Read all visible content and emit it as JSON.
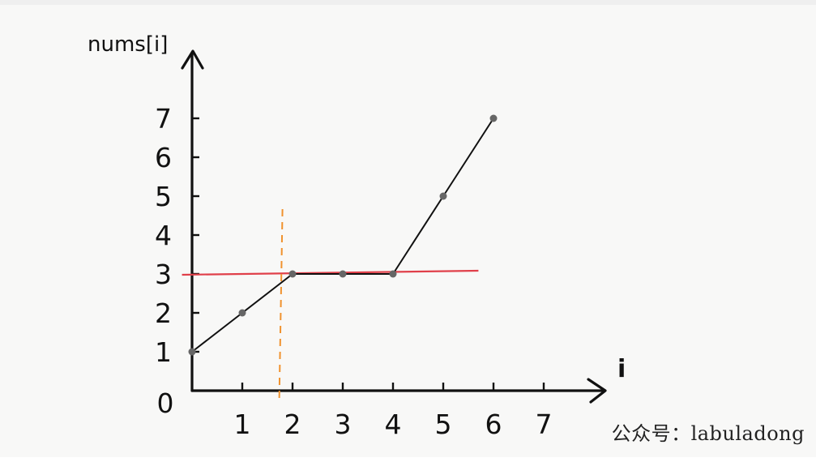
{
  "chart_data": {
    "type": "line",
    "title": "",
    "xlabel": "i",
    "ylabel": "nums[i]",
    "x_ticks": [
      "1",
      "2",
      "3",
      "4",
      "5",
      "6",
      "7"
    ],
    "y_ticks": [
      "1",
      "2",
      "3",
      "4",
      "5",
      "6",
      "7"
    ],
    "origin_label": "0",
    "xlim": [
      0,
      7
    ],
    "ylim": [
      0,
      7
    ],
    "grid": false,
    "series": [
      {
        "x": [
          0,
          1,
          2,
          3,
          4,
          5,
          6
        ],
        "y": [
          1,
          2,
          3,
          3,
          3,
          5,
          7
        ],
        "color": "#111111"
      }
    ],
    "horizontal_line": {
      "y": 3,
      "x_from": -0.2,
      "x_to": 5.7,
      "color": "#e0404a"
    },
    "vertical_line": {
      "x": 1.8,
      "style": "dashed",
      "color": "#f0922e"
    }
  },
  "watermark": "公众号：labuladong"
}
